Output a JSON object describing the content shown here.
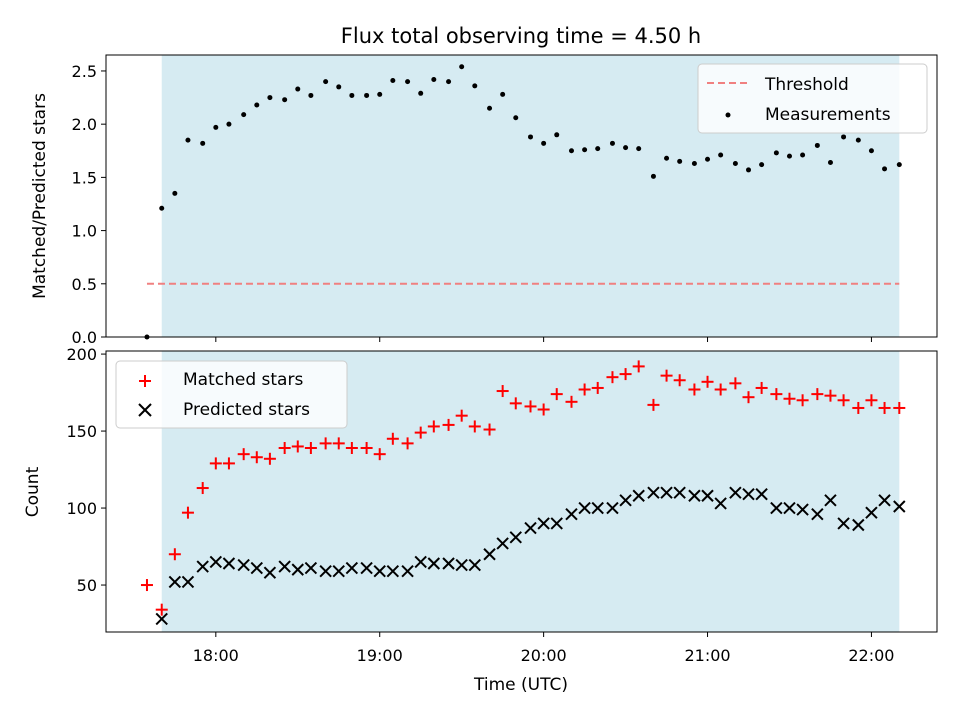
{
  "chart_data": [
    {
      "type": "scatter",
      "title": "Flux total observing time = 4.50 h",
      "xlabel": "",
      "ylabel": "Matched/Predicted stars",
      "ylim": [
        0,
        2.65
      ],
      "yticks": [
        "0.0",
        "0.5",
        "1.0",
        "1.5",
        "2.0",
        "2.5"
      ],
      "shaded_range_hours": [
        17.67,
        22.17
      ],
      "shade_color": "#add8e6",
      "legend_placement": "top-right",
      "series": [
        {
          "name": "Threshold",
          "style": "dashed-line",
          "color": "#f08080",
          "x_range_hours": [
            17.58,
            22.17
          ],
          "y": 0.5
        },
        {
          "name": "Measurements",
          "style": "dots",
          "color": "#000000",
          "x_hours": [
            17.58,
            17.67,
            17.75,
            17.83,
            17.92,
            18.0,
            18.08,
            18.17,
            18.25,
            18.33,
            18.42,
            18.5,
            18.58,
            18.67,
            18.75,
            18.83,
            18.92,
            19.0,
            19.08,
            19.17,
            19.25,
            19.33,
            19.42,
            19.5,
            19.58,
            19.67,
            19.75,
            19.83,
            19.92,
            20.0,
            20.08,
            20.17,
            20.25,
            20.33,
            20.42,
            20.5,
            20.58,
            20.67,
            20.75,
            20.83,
            20.92,
            21.0,
            21.08,
            21.17,
            21.25,
            21.33,
            21.42,
            21.5,
            21.58,
            21.67,
            21.75,
            21.83,
            21.92,
            22.0,
            22.08,
            22.17
          ],
          "values": [
            0.0,
            1.21,
            1.35,
            1.85,
            1.82,
            1.97,
            2.0,
            2.09,
            2.18,
            2.25,
            2.23,
            2.33,
            2.27,
            2.4,
            2.35,
            2.27,
            2.27,
            2.28,
            2.41,
            2.4,
            2.29,
            2.42,
            2.4,
            2.54,
            2.36,
            2.15,
            2.28,
            2.06,
            1.88,
            1.82,
            1.9,
            1.75,
            1.76,
            1.77,
            1.82,
            1.78,
            1.77,
            1.51,
            1.68,
            1.65,
            1.63,
            1.67,
            1.71,
            1.63,
            1.57,
            1.62,
            1.73,
            1.7,
            1.71,
            1.8,
            1.64,
            1.88,
            1.85,
            1.75,
            1.58,
            1.62
          ]
        }
      ]
    },
    {
      "type": "scatter",
      "title": "",
      "xlabel": "Time (UTC)",
      "ylabel": "Count",
      "ylim": [
        19.5,
        202
      ],
      "yticks": [
        "50",
        "100",
        "150",
        "200"
      ],
      "xlim_hours": [
        17.33,
        22.4
      ],
      "xticks": [
        "18:00",
        "19:00",
        "20:00",
        "21:00",
        "22:00"
      ],
      "shaded_range_hours": [
        17.67,
        22.17
      ],
      "shade_color": "#add8e6",
      "legend_placement": "top-left",
      "series": [
        {
          "name": "Matched stars",
          "marker": "plus",
          "color": "#ff0000",
          "x_hours": [
            17.58,
            17.67,
            17.75,
            17.83,
            17.92,
            18.0,
            18.08,
            18.17,
            18.25,
            18.33,
            18.42,
            18.5,
            18.58,
            18.67,
            18.75,
            18.83,
            18.92,
            19.0,
            19.08,
            19.17,
            19.25,
            19.33,
            19.42,
            19.5,
            19.58,
            19.67,
            19.75,
            19.83,
            19.92,
            20.0,
            20.08,
            20.17,
            20.25,
            20.33,
            20.42,
            20.5,
            20.58,
            20.67,
            20.75,
            20.83,
            20.92,
            21.0,
            21.08,
            21.17,
            21.25,
            21.33,
            21.42,
            21.5,
            21.58,
            21.67,
            21.75,
            21.83,
            21.92,
            22.0,
            22.08,
            22.17
          ],
          "values": [
            50,
            34,
            70,
            97,
            113,
            129,
            129,
            135,
            133,
            132,
            139,
            140,
            139,
            142,
            142,
            139,
            139,
            135,
            145,
            142,
            149,
            153,
            154,
            160,
            153,
            151,
            176,
            168,
            166,
            164,
            174,
            169,
            177,
            178,
            185,
            187,
            192,
            167,
            186,
            183,
            177,
            182,
            177,
            181,
            172,
            178,
            174,
            171,
            170,
            174,
            173,
            170,
            165,
            170,
            165,
            165
          ]
        },
        {
          "name": "Predicted stars",
          "marker": "x",
          "color": "#000000",
          "x_hours": [
            17.67,
            17.75,
            17.83,
            17.92,
            18.0,
            18.08,
            18.17,
            18.25,
            18.33,
            18.42,
            18.5,
            18.58,
            18.67,
            18.75,
            18.83,
            18.92,
            19.0,
            19.08,
            19.17,
            19.25,
            19.33,
            19.42,
            19.5,
            19.58,
            19.67,
            19.75,
            19.83,
            19.92,
            20.0,
            20.08,
            20.17,
            20.25,
            20.33,
            20.42,
            20.5,
            20.58,
            20.67,
            20.75,
            20.83,
            20.92,
            21.0,
            21.08,
            21.17,
            21.25,
            21.33,
            21.42,
            21.5,
            21.58,
            21.67,
            21.75,
            21.83,
            21.92,
            22.0,
            22.08,
            22.17
          ],
          "values": [
            28,
            52,
            52,
            62,
            65,
            64,
            63,
            61,
            58,
            62,
            60,
            61,
            59,
            59,
            61,
            61,
            59,
            59,
            59,
            65,
            64,
            64,
            63,
            63,
            70,
            77,
            81,
            87,
            90,
            90,
            96,
            100,
            100,
            100,
            105,
            108,
            110,
            110,
            110,
            108,
            108,
            103,
            110,
            109,
            109,
            100,
            100,
            99,
            96,
            105,
            90,
            89,
            97,
            105,
            101
          ]
        }
      ]
    }
  ]
}
